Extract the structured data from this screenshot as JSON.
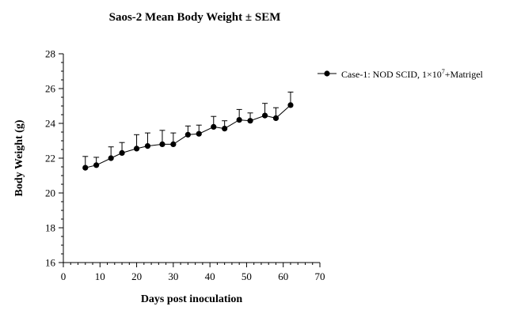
{
  "chart_data": {
    "type": "line",
    "title": "Saos-2 Mean Body Weight ± SEM",
    "xlabel": "Days post inoculation",
    "ylabel": "Body Weight (g)",
    "xlim": [
      0,
      70
    ],
    "ylim": [
      16,
      28
    ],
    "x_ticks": [
      "0",
      "10",
      "20",
      "30",
      "40",
      "50",
      "60",
      "70"
    ],
    "y_ticks": [
      "16",
      "18",
      "20",
      "22",
      "24",
      "26",
      "28"
    ],
    "legend_position": "right",
    "series": [
      {
        "name_prefix": "Case-1: NOD SCID, 1×10",
        "name_exponent": "7",
        "name_suffix": "+Matrigel",
        "color": "#000000",
        "x": [
          6,
          9,
          13,
          16,
          20,
          23,
          27,
          30,
          34,
          37,
          41,
          44,
          48,
          51,
          55,
          58,
          62
        ],
        "y": [
          21.45,
          21.6,
          22.0,
          22.3,
          22.55,
          22.7,
          22.8,
          22.8,
          23.35,
          23.4,
          23.8,
          23.7,
          24.2,
          24.15,
          24.45,
          24.3,
          25.05
        ],
        "sem": [
          0.65,
          0.45,
          0.65,
          0.6,
          0.8,
          0.75,
          0.8,
          0.65,
          0.5,
          0.5,
          0.6,
          0.45,
          0.6,
          0.45,
          0.7,
          0.6,
          0.75
        ]
      }
    ]
  }
}
